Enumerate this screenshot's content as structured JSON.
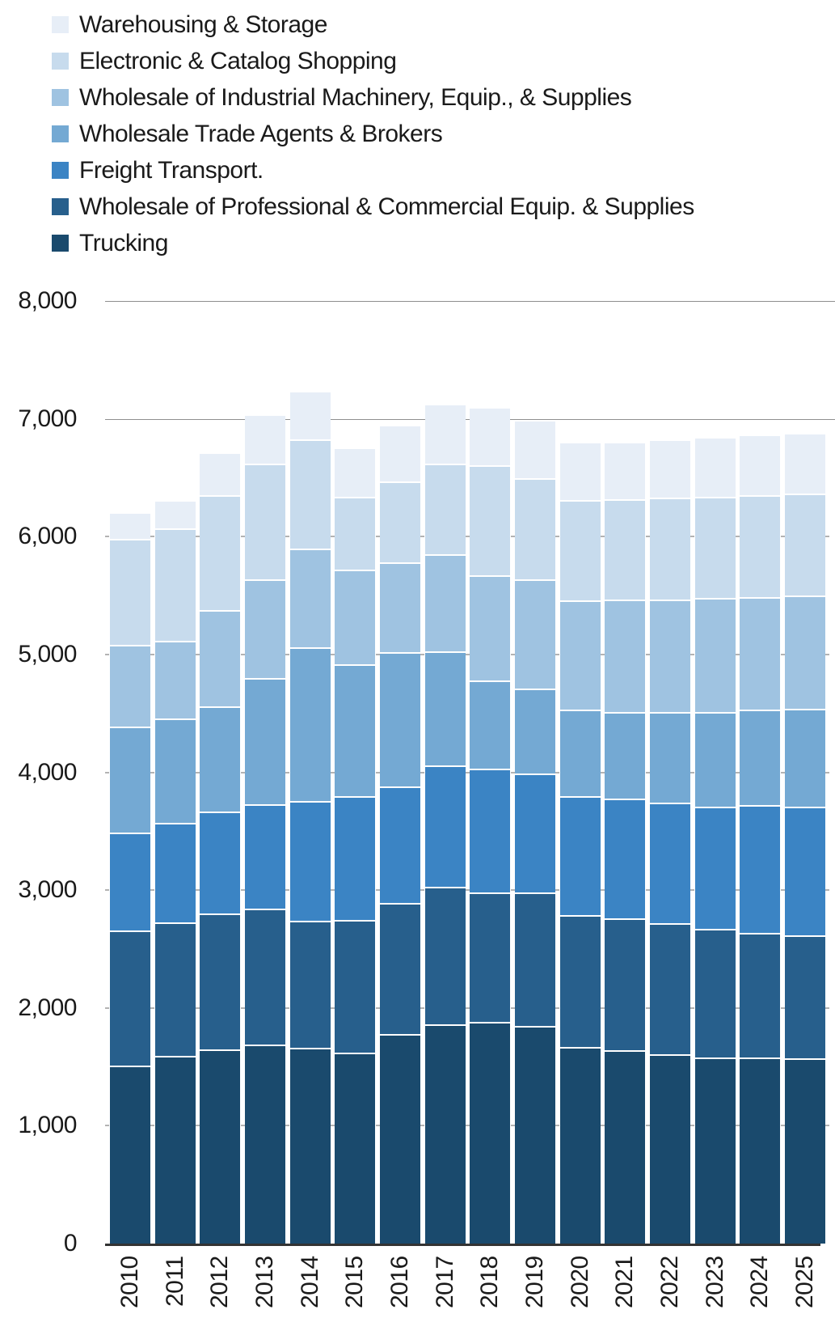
{
  "legend": {
    "items": [
      {
        "label": "Warehousing & Storage",
        "color": "#e7eef7"
      },
      {
        "label": "Electronic & Catalog Shopping",
        "color": "#c7dbed"
      },
      {
        "label": "Wholesale of Industrial Machinery, Equip., & Supplies",
        "color": "#9fc3e1"
      },
      {
        "label": "Wholesale Trade Agents & Brokers",
        "color": "#74a9d3"
      },
      {
        "label": "Freight Transport.",
        "color": "#3b84c4"
      },
      {
        "label": "Wholesale of Professional & Commercial Equip. & Supplies",
        "color": "#275f8c"
      },
      {
        "label": "Trucking",
        "color": "#1a4a6d"
      }
    ]
  },
  "y_axis": {
    "labels": [
      "8,000",
      "7,000",
      "6,000",
      "5,000",
      "4,000",
      "3,000",
      "2,000",
      "1,000",
      "0"
    ],
    "values": [
      8000,
      7000,
      6000,
      5000,
      4000,
      3000,
      2000,
      1000,
      0
    ]
  },
  "chart_data": {
    "type": "bar",
    "stacked": true,
    "title": "",
    "xlabel": "",
    "ylabel": "",
    "ylim": [
      0,
      8000
    ],
    "grid_major_lines": [
      8000,
      7000
    ],
    "tick_levels": [
      6000,
      5000,
      4000,
      3000,
      2000,
      1000
    ],
    "legend_position": "top-left",
    "categories": [
      "2010",
      "2011",
      "2012",
      "2013",
      "2014",
      "2015",
      "2016",
      "2017",
      "2018",
      "2019",
      "2020",
      "2021",
      "2022",
      "2023",
      "2024",
      "2025"
    ],
    "series": [
      {
        "name": "Trucking",
        "color": "#1a4a6d",
        "values": [
          1510,
          1590,
          1650,
          1690,
          1660,
          1620,
          1780,
          1860,
          1880,
          1850,
          1670,
          1640,
          1610,
          1580,
          1580,
          1570
        ]
      },
      {
        "name": "Wholesale of Professional & Commercial Equip. & Supplies",
        "color": "#275f8c",
        "values": [
          1150,
          1140,
          1150,
          1150,
          1080,
          1130,
          1110,
          1170,
          1100,
          1130,
          1120,
          1120,
          1110,
          1090,
          1060,
          1050
        ]
      },
      {
        "name": "Freight Transport.",
        "color": "#3b84c4",
        "values": [
          830,
          840,
          870,
          890,
          1020,
          1050,
          990,
          1030,
          1050,
          1010,
          1010,
          1020,
          1020,
          1040,
          1080,
          1090
        ]
      },
      {
        "name": "Wholesale Trade Agents & Brokers",
        "color": "#74a9d3",
        "values": [
          900,
          890,
          890,
          1070,
          1300,
          1120,
          1140,
          970,
          750,
          720,
          730,
          730,
          770,
          800,
          810,
          830
        ]
      },
      {
        "name": "Wholesale of Industrial Machinery, Equip., & Supplies",
        "color": "#9fc3e1",
        "values": [
          690,
          660,
          820,
          840,
          840,
          800,
          760,
          820,
          890,
          930,
          930,
          960,
          960,
          970,
          960,
          960
        ]
      },
      {
        "name": "Electronic & Catalog Shopping",
        "color": "#c7dbed",
        "values": [
          905,
          955,
          970,
          980,
          930,
          620,
          690,
          770,
          940,
          860,
          850,
          850,
          860,
          860,
          860,
          870
        ]
      },
      {
        "name": "Warehousing & Storage",
        "color": "#e7eef7",
        "values": [
          225,
          235,
          370,
          420,
          410,
          420,
          480,
          510,
          490,
          490,
          500,
          490,
          500,
          510,
          520,
          510
        ]
      }
    ],
    "totals": [
      6210,
      6310,
      6720,
      7040,
      7240,
      6760,
      6950,
      7130,
      7100,
      6990,
      6810,
      6810,
      6830,
      6850,
      6870,
      6880
    ]
  }
}
